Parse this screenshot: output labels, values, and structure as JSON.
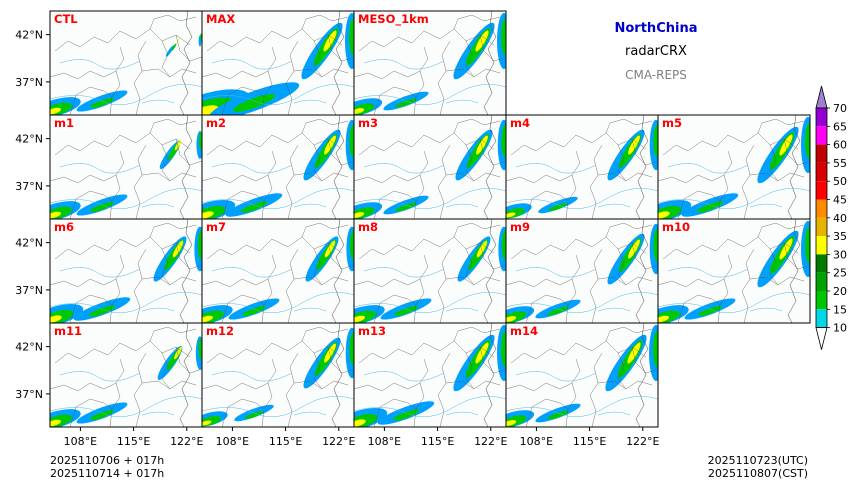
{
  "header": {
    "region": "NorthChina",
    "variable": "radarCRX",
    "system": "CMA-REPS"
  },
  "panels": [
    {
      "label": "CTL",
      "intensity": 0.9,
      "east": 0.2
    },
    {
      "label": "MAX",
      "intensity": 1.6,
      "east": 1.0
    },
    {
      "label": "MESO_1km",
      "intensity": 0.8,
      "east": 1.0
    },
    {
      "label": "m1",
      "intensity": 0.9,
      "east": 0.5
    },
    {
      "label": "m2",
      "intensity": 1.0,
      "east": 0.9
    },
    {
      "label": "m3",
      "intensity": 0.8,
      "east": 0.9
    },
    {
      "label": "m4",
      "intensity": 0.7,
      "east": 0.9
    },
    {
      "label": "m5",
      "intensity": 1.0,
      "east": 1.0
    },
    {
      "label": "m6",
      "intensity": 1.0,
      "east": 0.8
    },
    {
      "label": "m7",
      "intensity": 0.9,
      "east": 0.8
    },
    {
      "label": "m8",
      "intensity": 0.9,
      "east": 0.8
    },
    {
      "label": "m9",
      "intensity": 0.8,
      "east": 0.9
    },
    {
      "label": "m10",
      "intensity": 0.9,
      "east": 1.0
    },
    {
      "label": "m11",
      "intensity": 0.9,
      "east": 0.6
    },
    {
      "label": "m12",
      "intensity": 0.7,
      "east": 0.9
    },
    {
      "label": "m13",
      "intensity": 1.0,
      "east": 1.0
    },
    {
      "label": "m14",
      "intensity": 0.8,
      "east": 1.0
    }
  ],
  "axes": {
    "lat_ticks": [
      "42°N",
      "37°N"
    ],
    "lon_ticks": [
      "108°E",
      "115°E",
      "122°E"
    ],
    "lon_range": [
      104,
      124
    ],
    "lat_range": [
      33.5,
      44.5
    ]
  },
  "colorbar": {
    "levels": [
      "10",
      "15",
      "20",
      "25",
      "30",
      "35",
      "40",
      "45",
      "50",
      "55",
      "60",
      "65",
      "70"
    ],
    "colors": [
      "#00a0ff",
      "#00d8e8",
      "#00c800",
      "#00a000",
      "#007a00",
      "#ffff00",
      "#e6b400",
      "#ff8c00",
      "#ff0000",
      "#d80000",
      "#c00000",
      "#ff00f0",
      "#9400d3",
      "#a080d0"
    ]
  },
  "footer": {
    "init_line_1": "2025110706  +  017h",
    "init_line_2": "2025110714  +  017h",
    "valid_utc": "2025110723(UTC)",
    "valid_cst": "2025110807(CST)"
  }
}
